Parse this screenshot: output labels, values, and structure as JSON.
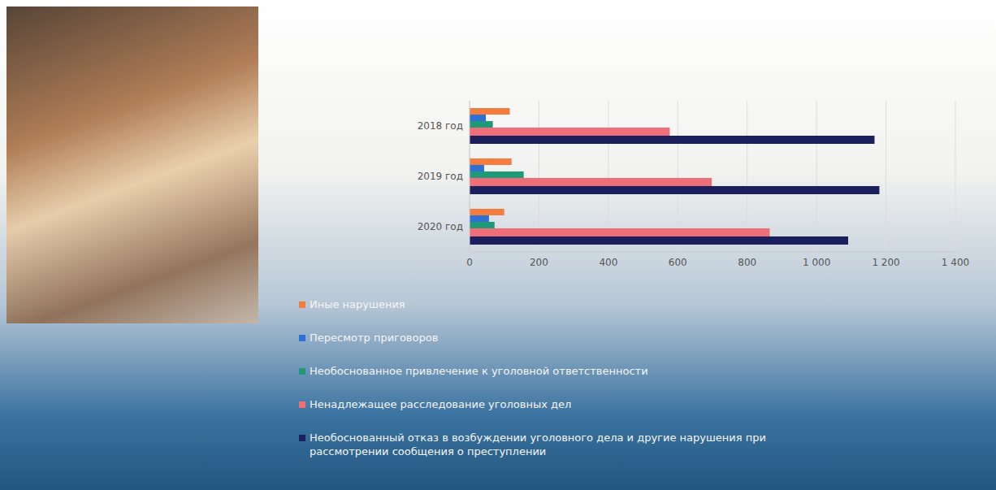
{
  "chart_data": {
    "type": "bar",
    "orientation": "horizontal",
    "grid": true,
    "legend": "bottom",
    "categories": [
      "2018 год",
      "2019 год",
      "2020 год"
    ],
    "series": [
      {
        "name": "Иные нарушения",
        "color": "#f47c3c",
        "values": [
          116,
          121,
          100
        ]
      },
      {
        "name": "Пересмотр приговоров",
        "color": "#2f6fd6",
        "values": [
          47,
          42,
          56
        ]
      },
      {
        "name": "Необоснованное привлечение к уголовной ответственности",
        "color": "#1f9a78",
        "values": [
          67,
          156,
          72
        ]
      },
      {
        "name": "Ненадлежащее расследование уголовных дел",
        "color": "#ef6f78",
        "values": [
          577,
          698,
          865
        ]
      },
      {
        "name": "Необоснованный отказ в возбуждении уголовного дела и другие нарушения при рассмотрении сообщения о преступлении",
        "color": "#1c1f5e",
        "values": [
          1167,
          1181,
          1091
        ]
      }
    ],
    "xlim": [
      0,
      1400
    ],
    "xticks": [
      0,
      200,
      400,
      600,
      800,
      {
        "value": 1000,
        "label": "1 000"
      },
      {
        "value": 1200,
        "label": "1 200"
      },
      {
        "value": 1400,
        "label": "1 400"
      }
    ]
  }
}
